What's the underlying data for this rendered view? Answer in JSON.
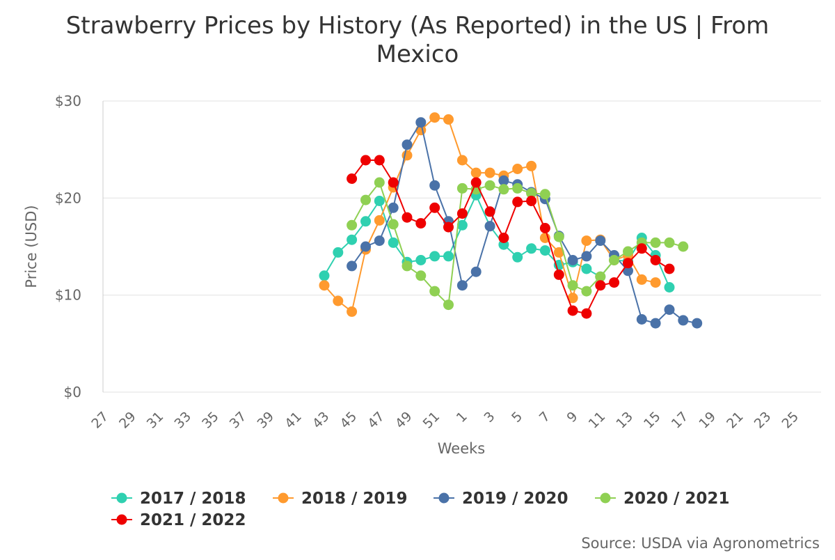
{
  "chart_data": {
    "type": "line",
    "title_lines": [
      "Strawberry Prices by History (As Reported) in the US | From",
      "Mexico"
    ],
    "xlabel": "Weeks",
    "ylabel": "Price (USD)",
    "ylim": [
      0,
      30
    ],
    "yticks": [
      0,
      10,
      20,
      30
    ],
    "ytick_labels": [
      "$0",
      "$10",
      "$20",
      "$30"
    ],
    "x_categories": [
      "27",
      "28",
      "29",
      "30",
      "31",
      "32",
      "33",
      "34",
      "35",
      "36",
      "37",
      "38",
      "39",
      "40",
      "41",
      "42",
      "43",
      "44",
      "45",
      "46",
      "47",
      "48",
      "49",
      "50",
      "51",
      "52",
      "1",
      "2",
      "3",
      "4",
      "5",
      "6",
      "7",
      "8",
      "9",
      "10",
      "11",
      "12",
      "13",
      "14",
      "15",
      "16",
      "17",
      "18",
      "19",
      "20",
      "21",
      "22",
      "23",
      "24",
      "25",
      "26"
    ],
    "x_tick_labels": [
      "27",
      "29",
      "31",
      "33",
      "35",
      "37",
      "39",
      "41",
      "43",
      "45",
      "47",
      "49",
      "51",
      "1",
      "3",
      "5",
      "7",
      "9",
      "11",
      "13",
      "15",
      "17",
      "19",
      "21",
      "23",
      "25"
    ],
    "grid": true,
    "legend_position": "bottom",
    "source": "Source: USDA via Agronometrics",
    "series": [
      {
        "name": "2017 / 2018",
        "color": "#2fd0b0",
        "start_index": 16,
        "values": [
          12.0,
          14.4,
          15.7,
          17.6,
          19.7,
          15.4,
          13.4,
          13.6,
          14.0,
          14.0,
          17.2,
          20.3,
          17.1,
          15.2,
          13.9,
          14.8,
          14.6,
          13.1,
          13.4,
          12.7,
          11.9,
          13.6,
          13.5,
          15.9,
          14.1,
          10.8
        ]
      },
      {
        "name": "2018 / 2019",
        "color": "#ff9a2e",
        "start_index": 16,
        "values": [
          11.0,
          9.4,
          8.3,
          14.7,
          17.7,
          21.1,
          24.4,
          27.0,
          28.3,
          28.1,
          23.9,
          22.6,
          22.6,
          22.3,
          23.0,
          23.3,
          15.9,
          14.4,
          9.7,
          15.6,
          15.7,
          13.6,
          14.1,
          11.6,
          11.3
        ]
      },
      {
        "name": "2019 / 2020",
        "color": "#4a72a8",
        "start_index": 18,
        "values": [
          13.0,
          15.0,
          15.6,
          19.0,
          25.5,
          27.8,
          21.3,
          17.6,
          11.0,
          12.4,
          17.1,
          21.8,
          21.4,
          20.6,
          19.9,
          16.1,
          13.6,
          14.0,
          15.6,
          14.1,
          12.5,
          7.5,
          7.1,
          8.5,
          7.4,
          7.1
        ]
      },
      {
        "name": "2020 / 2021",
        "color": "#8fd053",
        "start_index": 18,
        "values": [
          17.2,
          19.8,
          21.6,
          17.3,
          13.0,
          12.0,
          10.4,
          9.0,
          21.0,
          20.9,
          21.3,
          20.9,
          21.0,
          20.5,
          20.4,
          16.0,
          11.0,
          10.4,
          11.9,
          13.6,
          14.5,
          15.4,
          15.4,
          15.4,
          15.0
        ]
      },
      {
        "name": "2021 / 2022",
        "color": "#ee0000",
        "start_index": 18,
        "values": [
          22.0,
          23.9,
          23.9,
          21.6,
          18.0,
          17.4,
          19.0,
          17.0,
          18.4,
          21.6,
          18.6,
          15.9,
          19.6,
          19.7,
          16.9,
          12.1,
          8.4,
          8.1,
          11.0,
          11.3,
          13.3,
          14.8,
          13.6,
          12.7
        ]
      }
    ]
  }
}
